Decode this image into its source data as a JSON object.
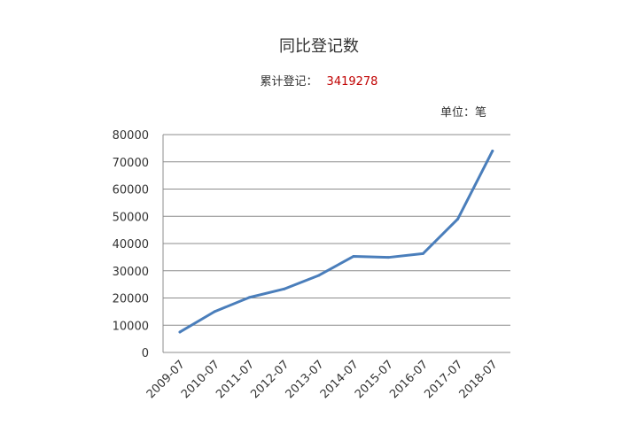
{
  "chart_data": {
    "type": "line",
    "title": "同比登记数",
    "summary_label": "累计登记：",
    "summary_value": "3419278",
    "unit_label": "单位：笔",
    "categories": [
      "2009-07",
      "2010-07",
      "2011-07",
      "2012-07",
      "2013-07",
      "2014-07",
      "2015-07",
      "2016-07",
      "2017-07",
      "2018-07"
    ],
    "series": [
      {
        "values": [
          7500,
          15000,
          20200,
          23300,
          28300,
          35300,
          34900,
          36300,
          49000,
          74000
        ]
      }
    ],
    "yticks": [
      "0",
      "10000",
      "20000",
      "30000",
      "40000",
      "50000",
      "60000",
      "70000",
      "80000"
    ],
    "ylim": [
      0,
      80000
    ],
    "grid": true,
    "line_color": "#4a7ebb",
    "grid_color": "#8c8c8c",
    "summary_color": "#c00000"
  }
}
